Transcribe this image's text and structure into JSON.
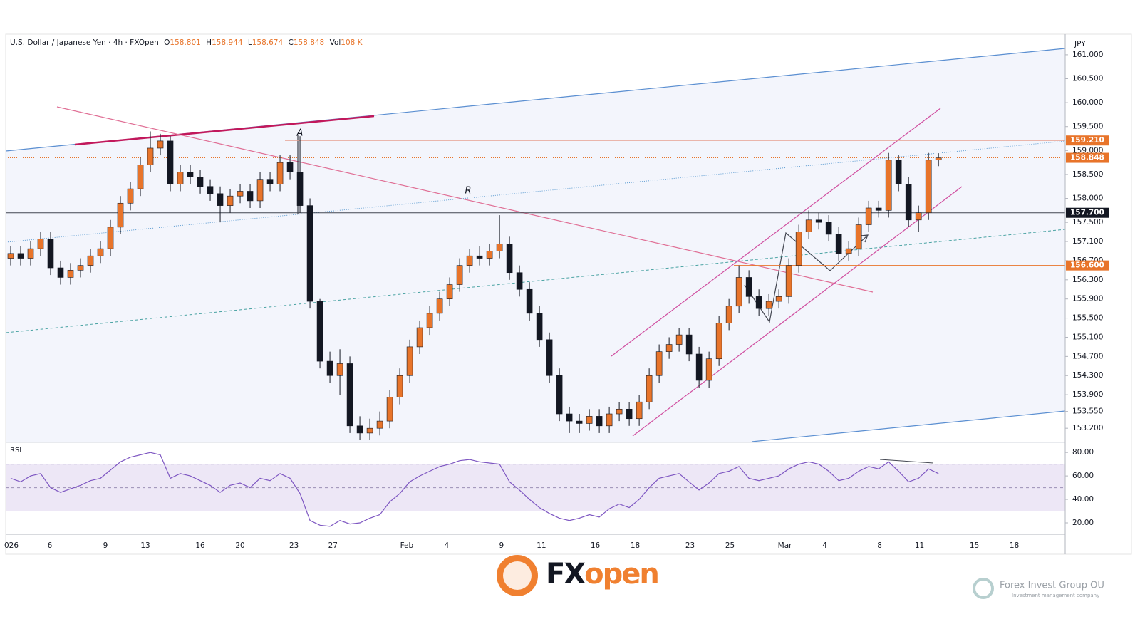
{
  "chart_data": {
    "type": "candlestick",
    "title": "U.S. Dollar / Japanese Yen · 4h · FXOpen",
    "ohlc_labels": [
      "O",
      "H",
      "L",
      "C",
      "Vol"
    ],
    "volume": "108 K",
    "currency": "JPY",
    "up_color": "#e8742a",
    "down_color": "#131722",
    "open": [
      156.75,
      156.85,
      156.75,
      156.95,
      157.15,
      156.55,
      156.35,
      156.5,
      156.6,
      156.8,
      156.95,
      157.4,
      157.9,
      158.2,
      158.7,
      159.05,
      159.2,
      158.3,
      158.55,
      158.45,
      158.25,
      158.1,
      157.85,
      158.05,
      158.15,
      157.95,
      158.4,
      158.3,
      158.75,
      158.55,
      157.85,
      155.85,
      154.6,
      154.3,
      154.55,
      153.25,
      153.1,
      153.2,
      153.35,
      153.85,
      154.3,
      154.9,
      155.3,
      155.6,
      155.9,
      156.2,
      156.6,
      156.8,
      156.75,
      156.9,
      157.05,
      156.45,
      156.1,
      155.6,
      155.05,
      154.3,
      153.5,
      153.35,
      153.3,
      153.45,
      153.25,
      153.5,
      153.6,
      153.4,
      153.75,
      154.3,
      154.8,
      154.95,
      155.15,
      154.75,
      154.2,
      154.65,
      155.4,
      155.75,
      156.35,
      155.95,
      155.7,
      155.85,
      155.95,
      156.6,
      157.3,
      157.55,
      157.5,
      157.25,
      156.85,
      156.95,
      157.45,
      157.8,
      157.75,
      158.8,
      158.3,
      157.55,
      157.7,
      158.801
    ],
    "high": [
      157.0,
      157.0,
      157.1,
      157.3,
      157.3,
      156.7,
      156.65,
      156.75,
      156.95,
      157.1,
      157.55,
      158.05,
      158.35,
      158.85,
      159.4,
      159.35,
      159.3,
      158.7,
      158.7,
      158.6,
      158.4,
      158.25,
      158.2,
      158.3,
      158.3,
      158.55,
      158.55,
      158.9,
      158.9,
      159.3,
      158.0,
      155.9,
      154.8,
      154.85,
      154.7,
      153.45,
      153.4,
      153.55,
      154.0,
      154.45,
      155.05,
      155.45,
      155.75,
      156.05,
      156.35,
      156.75,
      156.95,
      157.0,
      157.05,
      157.65,
      157.2,
      156.6,
      156.25,
      155.75,
      155.2,
      154.45,
      153.65,
      153.5,
      153.6,
      153.6,
      153.65,
      153.75,
      153.75,
      153.9,
      154.45,
      154.95,
      155.1,
      155.3,
      155.3,
      154.9,
      154.8,
      155.55,
      155.9,
      156.6,
      156.5,
      156.1,
      156.0,
      156.1,
      156.75,
      157.45,
      157.75,
      157.7,
      157.65,
      157.4,
      157.1,
      157.6,
      157.95,
      157.95,
      158.95,
      158.9,
      158.45,
      157.85,
      158.95,
      158.944
    ],
    "low": [
      156.6,
      156.6,
      156.6,
      156.8,
      156.4,
      156.2,
      156.2,
      156.35,
      156.45,
      156.65,
      156.8,
      157.25,
      157.75,
      158.05,
      158.55,
      158.9,
      158.15,
      158.15,
      158.3,
      158.1,
      157.95,
      157.5,
      157.7,
      157.9,
      157.8,
      157.8,
      158.15,
      158.15,
      158.4,
      157.7,
      155.7,
      154.45,
      154.15,
      153.9,
      153.1,
      152.95,
      152.95,
      153.05,
      153.2,
      153.7,
      154.15,
      154.75,
      155.15,
      155.45,
      155.75,
      156.05,
      156.45,
      156.6,
      156.6,
      156.75,
      156.3,
      155.95,
      155.45,
      154.9,
      154.15,
      153.35,
      153.1,
      153.1,
      153.15,
      153.1,
      153.1,
      153.35,
      153.25,
      153.25,
      153.6,
      154.15,
      154.65,
      154.8,
      154.6,
      154.05,
      154.05,
      154.5,
      155.25,
      155.6,
      155.8,
      155.55,
      155.55,
      155.7,
      155.8,
      156.45,
      157.15,
      157.35,
      157.1,
      156.7,
      156.7,
      156.8,
      157.3,
      157.6,
      157.6,
      158.15,
      157.4,
      157.3,
      157.55,
      158.674
    ],
    "close": [
      156.85,
      156.75,
      156.95,
      157.15,
      156.55,
      156.35,
      156.5,
      156.6,
      156.8,
      156.95,
      157.4,
      157.9,
      158.2,
      158.7,
      159.05,
      159.2,
      158.3,
      158.55,
      158.45,
      158.25,
      158.1,
      157.85,
      158.05,
      158.15,
      157.95,
      158.4,
      158.3,
      158.75,
      158.55,
      157.85,
      155.85,
      154.6,
      154.3,
      154.55,
      153.25,
      153.1,
      153.2,
      153.35,
      153.85,
      154.3,
      154.9,
      155.3,
      155.6,
      155.9,
      156.2,
      156.6,
      156.8,
      156.75,
      156.9,
      157.05,
      156.45,
      156.1,
      155.6,
      155.05,
      154.3,
      153.5,
      153.35,
      153.3,
      153.45,
      153.25,
      153.5,
      153.6,
      153.4,
      153.75,
      154.3,
      154.8,
      154.95,
      155.15,
      154.75,
      154.2,
      154.65,
      155.4,
      155.75,
      156.35,
      155.95,
      155.7,
      155.85,
      155.95,
      156.6,
      157.3,
      157.55,
      157.5,
      157.25,
      156.85,
      156.95,
      157.45,
      157.8,
      157.75,
      158.8,
      158.3,
      157.55,
      157.7,
      158.8,
      158.848
    ],
    "xlim": [
      0,
      106.2
    ],
    "xticks": [
      {
        "value": 0.57,
        "label": "026"
      },
      {
        "value": 4.43,
        "label": "6"
      },
      {
        "value": 10,
        "label": "9"
      },
      {
        "value": 14,
        "label": "13"
      },
      {
        "value": 19.5,
        "label": "16"
      },
      {
        "value": 23.5,
        "label": "20"
      },
      {
        "value": 28.9,
        "label": "23"
      },
      {
        "value": 32.8,
        "label": "27"
      },
      {
        "value": 40.2,
        "label": "Feb"
      },
      {
        "value": 44.2,
        "label": "4"
      },
      {
        "value": 49.7,
        "label": "9"
      },
      {
        "value": 53.7,
        "label": "11"
      },
      {
        "value": 59.1,
        "label": "16"
      },
      {
        "value": 63.1,
        "label": "18"
      },
      {
        "value": 68.6,
        "label": "23"
      },
      {
        "value": 72.6,
        "label": "25"
      },
      {
        "value": 78.1,
        "label": "Mar"
      },
      {
        "value": 82.1,
        "label": "4"
      },
      {
        "value": 87.6,
        "label": "8"
      },
      {
        "value": 91.6,
        "label": "11"
      },
      {
        "value": 97.1,
        "label": "15"
      },
      {
        "value": 101.1,
        "label": "18"
      }
    ],
    "ylim": [
      152.92,
      161.43
    ],
    "yticks": [
      {
        "value": 161,
        "label": "161.000"
      },
      {
        "value": 160.5,
        "label": "160.500"
      },
      {
        "value": 160,
        "label": "160.000"
      },
      {
        "value": 159.5,
        "label": "159.500"
      },
      {
        "value": 159,
        "label": "159.000"
      },
      {
        "value": 158.5,
        "label": "158.500"
      },
      {
        "value": 158,
        "label": "158.000"
      },
      {
        "value": 157.5,
        "label": "157.500"
      },
      {
        "value": 157.1,
        "label": "157.100"
      },
      {
        "value": 156.7,
        "label": "156.700"
      },
      {
        "value": 156.3,
        "label": "156.300"
      },
      {
        "value": 155.9,
        "label": "155.900"
      },
      {
        "value": 155.5,
        "label": "155.500"
      },
      {
        "value": 155.1,
        "label": "155.100"
      },
      {
        "value": 154.7,
        "label": "154.700"
      },
      {
        "value": 154.3,
        "label": "154.300"
      },
      {
        "value": 153.9,
        "label": "153.900"
      },
      {
        "value": 153.55,
        "label": "153.550"
      },
      {
        "value": 153.2,
        "label": "153.200"
      }
    ],
    "levels": [
      {
        "value": 159.21,
        "label": "159.210",
        "color": "#e8742a",
        "line": "#e8a090"
      },
      {
        "value": 157.7,
        "label": "157.700",
        "color": "#131722",
        "line": "#434651"
      },
      {
        "value": 156.6,
        "label": "156.600",
        "color": "#e8742a",
        "line": "#e8742a"
      },
      {
        "value": 158.848,
        "color": "#e8742a",
        "line": "#e8742a"
      }
    ],
    "annotations": [
      "A",
      "R"
    ],
    "rsi": {
      "label": "RSI",
      "color": "#7e57c2",
      "band_color": "#ede7f6",
      "values": [
        58,
        55,
        60,
        62,
        50,
        46,
        49,
        52,
        56,
        58,
        65,
        72,
        76,
        78,
        80,
        78,
        58,
        62,
        60,
        56,
        52,
        46,
        52,
        54,
        50,
        58,
        56,
        62,
        58,
        45,
        22,
        18,
        17,
        22,
        19,
        20,
        24,
        27,
        38,
        45,
        55,
        60,
        64,
        68,
        70,
        73,
        74,
        72,
        71,
        70,
        55,
        48,
        40,
        33,
        28,
        24,
        22,
        24,
        27,
        25,
        32,
        36,
        33,
        40,
        50,
        58,
        60,
        62,
        55,
        48,
        54,
        62,
        64,
        68,
        58,
        56,
        58,
        60,
        66,
        70,
        72,
        70,
        64,
        56,
        58,
        64,
        68,
        66,
        72,
        64,
        55,
        58,
        66,
        62
      ],
      "ylim": [
        11.5,
        88
      ],
      "levels": [
        70,
        50,
        30
      ],
      "yticks": [
        {
          "value": 80,
          "label": "80.00"
        },
        {
          "value": 60,
          "label": "60.00"
        },
        {
          "value": 40,
          "label": "40.00"
        },
        {
          "value": 20,
          "label": "20.00"
        }
      ]
    }
  },
  "footer": {
    "brand_a": "FX",
    "brand_b": "open",
    "company": "Forex Invest Group OU",
    "tagline": "Investment management company"
  }
}
